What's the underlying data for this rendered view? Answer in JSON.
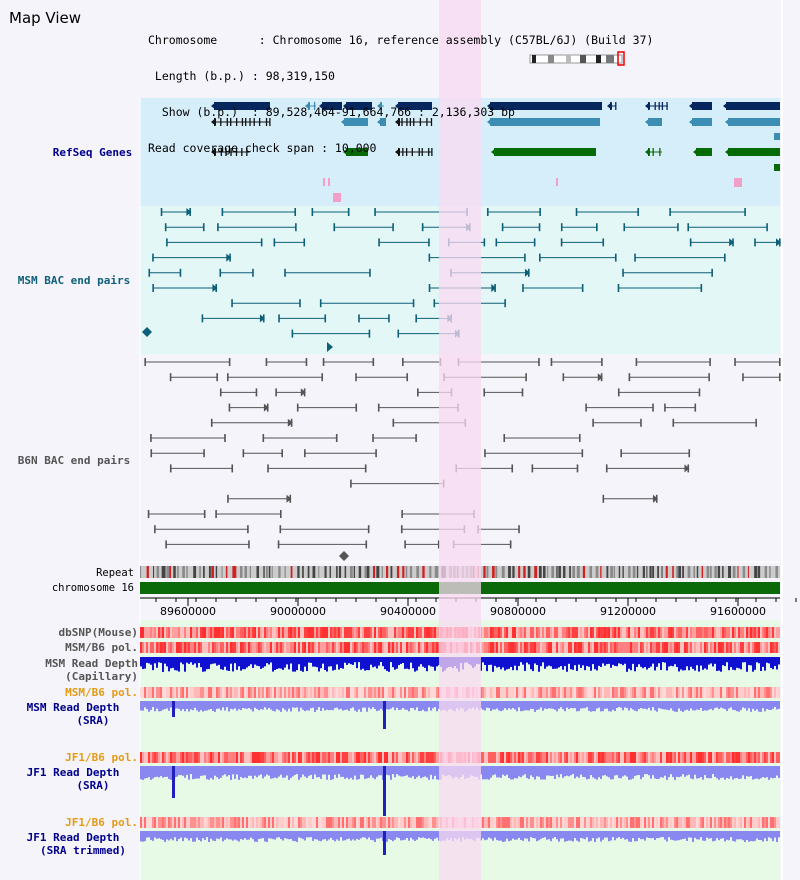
{
  "view_title": "Map View",
  "info": {
    "chromosome": "Chromosome      : Chromosome 16, reference assembly (C57BL/6J) (Build 37)",
    "length": " Length (b.p.) : 98,319,150",
    "show": "  Show (b.p.)  : 89,528,464-91,664,766 : 2,136,303 bp",
    "coverage": "Read coverage check span : 10,000"
  },
  "tracks": {
    "refseq": "RefSeq Genes",
    "msm_bac": "MSM BAC end pairs",
    "b6n_bac": "B6N BAC end pairs",
    "repeat": "Repeat",
    "chrom": "chromosome 16",
    "dbsnp": "dbSNP(Mouse)",
    "msm_b6_pol": "MSM/B6 pol.",
    "msm_depth_cap_1": "MSM Read Depth",
    "msm_depth_cap_2": "(Capillary)",
    "msm_b6_pol_2": "MSM/B6 pol.",
    "msm_depth_sra_1": "MSM Read Depth",
    "msm_depth_sra_2": "(SRA)",
    "jf1_b6_pol": "JF1/B6 pol.",
    "jf1_depth_sra_1": "JF1 Read Depth",
    "jf1_depth_sra_2": "(SRA)",
    "jf1_b6_pol_2": "JF1/B6 pol.",
    "jf1_depth_trim_1": "JF1 Read Depth",
    "jf1_depth_trim_2": "(SRA trimmed)"
  },
  "axis": {
    "ticks": [
      "89600000",
      "90000000",
      "90400000",
      "90800000",
      "91200000",
      "91600000"
    ]
  },
  "colors": {
    "refseq_bg": "#d6eefa",
    "msm_bg": "#e3f7f7",
    "b6n_bg": "#f4f4fa",
    "highlight": "#f9d9f1",
    "refseq_label": "#00008b",
    "msm_label": "#0e5f7a",
    "b6n_label": "#555555",
    "chromosome": "#0a6a0a",
    "depth_blue": "#1010d0",
    "depth_light": "#8888f0",
    "pol_label": "#e39b16"
  }
}
